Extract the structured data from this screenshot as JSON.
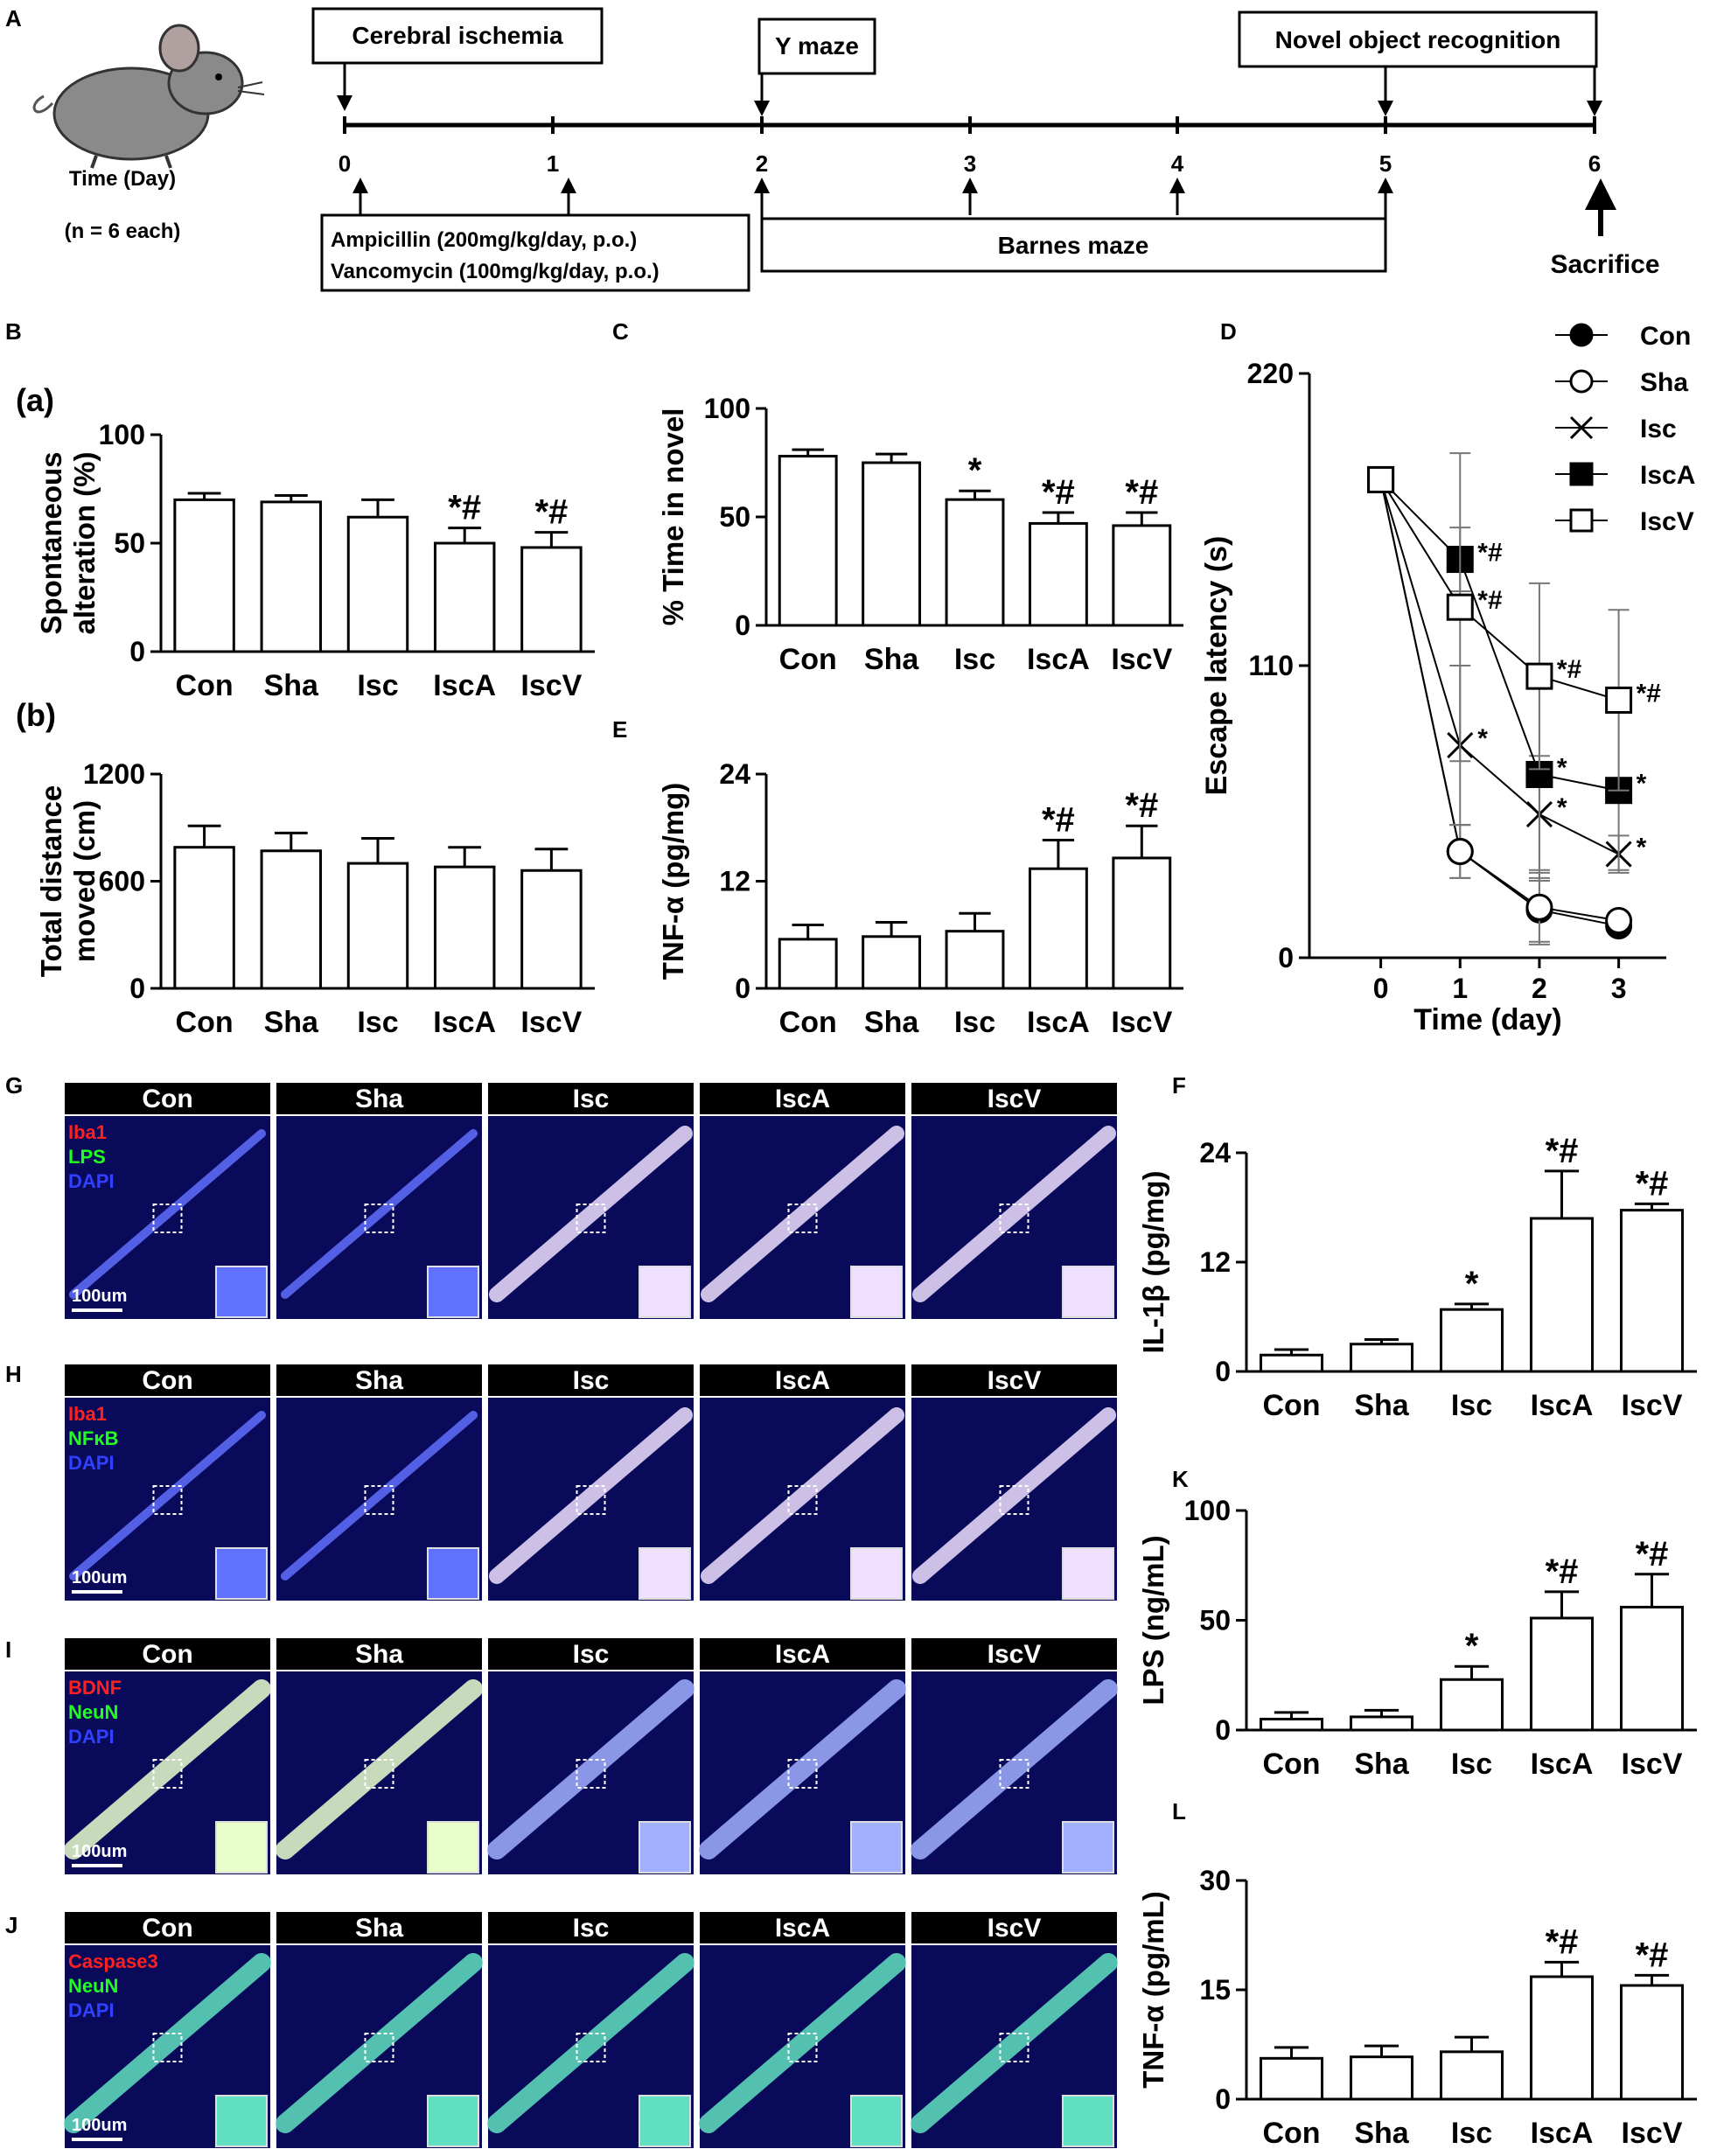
{
  "panel_letters": [
    "A",
    "B",
    "C",
    "D",
    "E",
    "G",
    "H",
    "I",
    "J",
    "F",
    "K",
    "L"
  ],
  "sublabels": {
    "a": "(a)",
    "b": "(b)"
  },
  "timeline": {
    "boxes": {
      "ischemia": "Cerebral ischemia",
      "ymaze": "Y maze",
      "nor": "Novel object recognition",
      "barnes": "Barnes maze",
      "drug1": "Ampicillin (200mg/kg/day, p.o.)",
      "drug2": "Vancomycin (100mg/kg/day, p.o.)"
    },
    "ticks": [
      "0",
      "1",
      "2",
      "3",
      "4",
      "5",
      "6"
    ],
    "time_label": "Time (Day)",
    "n_label": "(n = 6 each)",
    "sacrifice": "Sacrifice"
  },
  "groups": [
    "Con",
    "Sha",
    "Isc",
    "IscA",
    "IscV"
  ],
  "colors": {
    "bar_fill": "#ffffff",
    "stroke": "#000000",
    "micro_bg": "#0a0a5a",
    "micro_header": "#000000"
  },
  "chart_data": [
    {
      "id": "Ba",
      "type": "bar",
      "ylabel": [
        "Spontaneous",
        "alteration (%)"
      ],
      "ylim": [
        0,
        100
      ],
      "yticks": [
        0,
        50,
        100
      ],
      "categories": [
        "Con",
        "Sha",
        "Isc",
        "IscA",
        "IscV"
      ],
      "values": [
        70,
        69,
        62,
        50,
        48
      ],
      "errors": [
        3,
        3,
        8,
        7,
        7
      ],
      "annotations": [
        "",
        "",
        "",
        "*#",
        "*#"
      ]
    },
    {
      "id": "Bb",
      "type": "bar",
      "ylabel": [
        "Total distance",
        "moved (cm)"
      ],
      "ylim": [
        0,
        1200
      ],
      "yticks": [
        0,
        600,
        1200
      ],
      "categories": [
        "Con",
        "Sha",
        "Isc",
        "IscA",
        "IscV"
      ],
      "values": [
        790,
        770,
        700,
        680,
        660
      ],
      "errors": [
        120,
        100,
        140,
        110,
        120
      ],
      "annotations": [
        "",
        "",
        "",
        "",
        ""
      ]
    },
    {
      "id": "C",
      "type": "bar",
      "ylabel": [
        "% Time in novel"
      ],
      "ylim": [
        0,
        100
      ],
      "yticks": [
        0,
        50,
        100
      ],
      "categories": [
        "Con",
        "Sha",
        "Isc",
        "IscA",
        "IscV"
      ],
      "values": [
        78,
        75,
        58,
        47,
        46
      ],
      "errors": [
        3,
        4,
        4,
        5,
        6
      ],
      "annotations": [
        "",
        "",
        "*",
        "*#",
        "*#"
      ]
    },
    {
      "id": "E",
      "type": "bar",
      "ylabel": [
        "TNF-α (pg/mg)"
      ],
      "ylim": [
        0,
        24
      ],
      "yticks": [
        0,
        12,
        24
      ],
      "categories": [
        "Con",
        "Sha",
        "Isc",
        "IscA",
        "IscV"
      ],
      "values": [
        5.5,
        5.8,
        6.4,
        13.4,
        14.6
      ],
      "errors": [
        1.6,
        1.6,
        2.0,
        3.2,
        3.6
      ],
      "annotations": [
        "",
        "",
        "",
        "*#",
        "*#"
      ]
    },
    {
      "id": "F",
      "type": "bar",
      "ylabel": [
        "IL-1β (pg/mg)"
      ],
      "ylim": [
        0,
        24
      ],
      "yticks": [
        0,
        12,
        24
      ],
      "categories": [
        "Con",
        "Sha",
        "Isc",
        "IscA",
        "IscV"
      ],
      "values": [
        1.8,
        3.0,
        6.8,
        16.8,
        17.7
      ],
      "errors": [
        0.6,
        0.5,
        0.6,
        5.2,
        0.7
      ],
      "annotations": [
        "",
        "",
        "*",
        "*#",
        "*#"
      ]
    },
    {
      "id": "K",
      "type": "bar",
      "ylabel": [
        "LPS (ng/mL)"
      ],
      "ylim": [
        0,
        100
      ],
      "yticks": [
        0,
        50,
        100
      ],
      "categories": [
        "Con",
        "Sha",
        "Isc",
        "IscA",
        "IscV"
      ],
      "values": [
        5,
        6,
        23,
        51,
        56
      ],
      "errors": [
        3,
        3,
        6,
        12,
        15
      ],
      "annotations": [
        "",
        "",
        "*",
        "*#",
        "*#"
      ]
    },
    {
      "id": "L",
      "type": "bar",
      "ylabel": [
        "TNF-α (pg/mL)"
      ],
      "ylim": [
        0,
        30
      ],
      "yticks": [
        0,
        15,
        30
      ],
      "categories": [
        "Con",
        "Sha",
        "Isc",
        "IscA",
        "IscV"
      ],
      "values": [
        5.6,
        5.8,
        6.5,
        16.8,
        15.6
      ],
      "errors": [
        1.5,
        1.5,
        2.0,
        2.0,
        1.4
      ],
      "annotations": [
        "",
        "",
        "",
        "*#",
        "*#"
      ]
    },
    {
      "id": "D",
      "type": "line",
      "xlabel": "Time (day)",
      "ylabel": "Escape latency (s)",
      "ylim": [
        0,
        220
      ],
      "yticks": [
        0,
        110,
        220
      ],
      "x": [
        0,
        1,
        2,
        3
      ],
      "series": [
        {
          "name": "Con",
          "marker": "filled-circle",
          "values": [
            180,
            40,
            18,
            12
          ],
          "errors": [
            0,
            10,
            12,
            3
          ],
          "annotations": [
            "",
            "",
            "",
            ""
          ]
        },
        {
          "name": "Sha",
          "marker": "open-circle",
          "values": [
            180,
            40,
            19,
            14
          ],
          "errors": [
            0,
            10,
            14,
            3
          ],
          "annotations": [
            "",
            "",
            "",
            ""
          ]
        },
        {
          "name": "Isc",
          "marker": "x",
          "values": [
            180,
            80,
            54,
            39
          ],
          "errors": [
            0,
            30,
            22,
            7
          ],
          "annotations": [
            "",
            "*",
            "*",
            "*"
          ]
        },
        {
          "name": "IscA",
          "marker": "filled-square",
          "values": [
            180,
            150,
            69,
            63
          ],
          "errors": [
            0,
            12,
            40,
            30
          ],
          "annotations": [
            "",
            "*#",
            "*",
            "*"
          ]
        },
        {
          "name": "IscV",
          "marker": "open-square",
          "values": [
            180,
            132,
            106,
            97
          ],
          "errors": [
            0,
            58,
            35,
            34
          ],
          "annotations": [
            "",
            "*#",
            "*#",
            "*#"
          ]
        }
      ]
    }
  ],
  "micrographs": [
    {
      "id": "G",
      "stains": [
        "Iba1",
        "LPS",
        "DAPI"
      ],
      "stain_colors": [
        "#ff2020",
        "#20ff20",
        "#3040ff"
      ]
    },
    {
      "id": "H",
      "stains": [
        "Iba1",
        "NFκB",
        "DAPI"
      ],
      "stain_colors": [
        "#ff2020",
        "#20ff20",
        "#3040ff"
      ]
    },
    {
      "id": "I",
      "stains": [
        "BDNF",
        "NeuN",
        "DAPI"
      ],
      "stain_colors": [
        "#ff2020",
        "#20ff20",
        "#3040ff"
      ]
    },
    {
      "id": "J",
      "stains": [
        "Caspase3",
        "NeuN",
        "DAPI"
      ],
      "stain_colors": [
        "#ff2020",
        "#20ff20",
        "#3040ff"
      ]
    }
  ],
  "micro_headers": [
    "Con",
    "Sha",
    "Isc",
    "IscA",
    "IscV"
  ],
  "scalebar": "100um"
}
